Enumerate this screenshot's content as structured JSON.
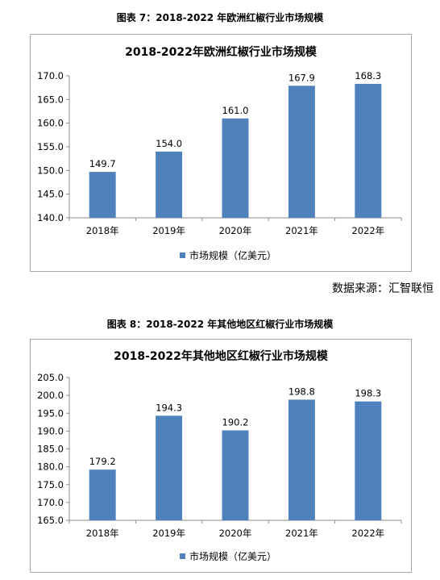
{
  "figures": [
    {
      "caption": "图表 7：2018-2022 年欧洲红椒行业市场规模"
    },
    {
      "caption": "图表 8：2018-2022 年其他地区红椒行业市场规模"
    }
  ],
  "source_note": "数据来源：汇智联恒",
  "chart_data": [
    {
      "type": "bar",
      "title": "2018-2022年欧洲红椒行业市场规模",
      "categories": [
        "2018年",
        "2019年",
        "2020年",
        "2021年",
        "2022年"
      ],
      "series": [
        {
          "name": "市场规模（亿美元）",
          "values": [
            149.7,
            154.0,
            161.0,
            167.9,
            168.3
          ],
          "color": "#4f81bd"
        }
      ],
      "ylim": [
        140.0,
        170.0
      ],
      "yticks": [
        "140.0",
        "145.0",
        "150.0",
        "155.0",
        "160.0",
        "165.0",
        "170.0"
      ],
      "data_labels": [
        "149.7",
        "154.0",
        "161.0",
        "167.9",
        "168.3"
      ],
      "grid": false,
      "legend": "bottom"
    },
    {
      "type": "bar",
      "title": "2018-2022年其他地区红椒行业市场规模",
      "categories": [
        "2018年",
        "2019年",
        "2020年",
        "2021年",
        "2022年"
      ],
      "series": [
        {
          "name": "市场规模（亿美元）",
          "values": [
            179.2,
            194.3,
            190.2,
            198.8,
            198.3
          ],
          "color": "#4f81bd"
        }
      ],
      "ylim": [
        165.0,
        205.0
      ],
      "yticks": [
        "165.0",
        "170.0",
        "175.0",
        "180.0",
        "185.0",
        "190.0",
        "195.0",
        "200.0",
        "205.0"
      ],
      "data_labels": [
        "179.2",
        "194.3",
        "190.2",
        "198.8",
        "198.3"
      ],
      "grid": false,
      "legend": "bottom"
    }
  ]
}
